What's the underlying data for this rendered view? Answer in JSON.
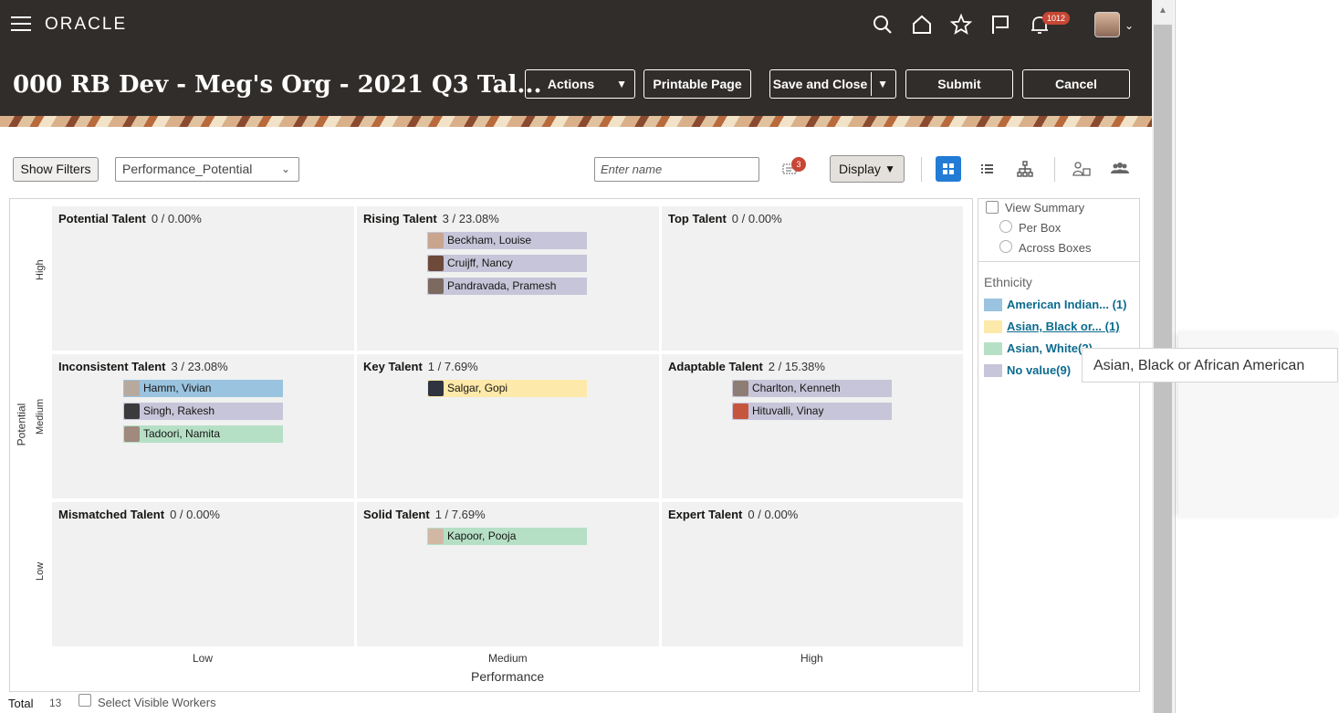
{
  "header": {
    "logo": "ORACLE",
    "notifications_count": "1012",
    "page_title": "000 RB Dev - Meg's Org - 2021 Q3 Tal...",
    "actions_label": "Actions",
    "printable_label": "Printable Page",
    "save_close_label": "Save and Close",
    "submit_label": "Submit",
    "cancel_label": "Cancel"
  },
  "toolbar": {
    "show_filters_label": "Show Filters",
    "grid_select_value": "Performance_Potential",
    "name_placeholder": "Enter name",
    "filter_badge_count": "3",
    "display_label": "Display"
  },
  "grid": {
    "y_axis_label": "Potential",
    "x_axis_label": "Performance",
    "y_ticks": [
      "High",
      "Medium",
      "Low"
    ],
    "x_ticks": [
      "Low",
      "Medium",
      "High"
    ],
    "boxes": {
      "potential_talent": {
        "title": "Potential Talent",
        "stat": "0 / 0.00%"
      },
      "rising_talent": {
        "title": "Rising Talent",
        "stat": "3 / 23.08%"
      },
      "top_talent": {
        "title": "Top Talent",
        "stat": "0 / 0.00%"
      },
      "inconsistent_talent": {
        "title": "Inconsistent Talent",
        "stat": "3 / 23.08%"
      },
      "key_talent": {
        "title": "Key Talent",
        "stat": "1 / 7.69%"
      },
      "adaptable_talent": {
        "title": "Adaptable Talent",
        "stat": "2 / 15.38%"
      },
      "mismatched_talent": {
        "title": "Mismatched Talent",
        "stat": "0 / 0.00%"
      },
      "solid_talent": {
        "title": "Solid Talent",
        "stat": "1 / 7.69%"
      },
      "expert_talent": {
        "title": "Expert Talent",
        "stat": "0 / 0.00%"
      }
    },
    "workers": {
      "beckham": "Beckham, Louise",
      "cruijff": "Cruijff, Nancy",
      "pandravada": "Pandravada, Pramesh",
      "hamm": "Hamm, Vivian",
      "singh": "Singh, Rakesh",
      "tadoori": "Tadoori, Namita",
      "salgar": "Salgar, Gopi",
      "charlton": "Charlton, Kenneth",
      "hituvalli": "Hituvalli, Vinay",
      "kapoor": "Kapoor, Pooja"
    }
  },
  "side_panel": {
    "view_summary_label": "View Summary",
    "per_box_label": "Per Box",
    "across_boxes_label": "Across Boxes",
    "legend_title": "Ethnicity",
    "legend": [
      {
        "label": "American Indian... (1)",
        "color": "#9ac3df"
      },
      {
        "label": "Asian, Black or... (1)",
        "color": "#fde9a9"
      },
      {
        "label": "Asian, White(2)",
        "color": "#b6e0c6"
      },
      {
        "label": "No value(9)",
        "color": "#c7c5d9"
      }
    ]
  },
  "tooltip": "Asian, Black or African American",
  "footer": {
    "total_label": "Total",
    "total_value": "13",
    "select_visible_label": "Select Visible Workers"
  },
  "colors": {
    "header_bg": "#312d2a",
    "accent_blue": "#227cd6",
    "link_color": "#0c6b8f",
    "badge_red": "#c74634",
    "box_bg": "#f0f1f0"
  }
}
